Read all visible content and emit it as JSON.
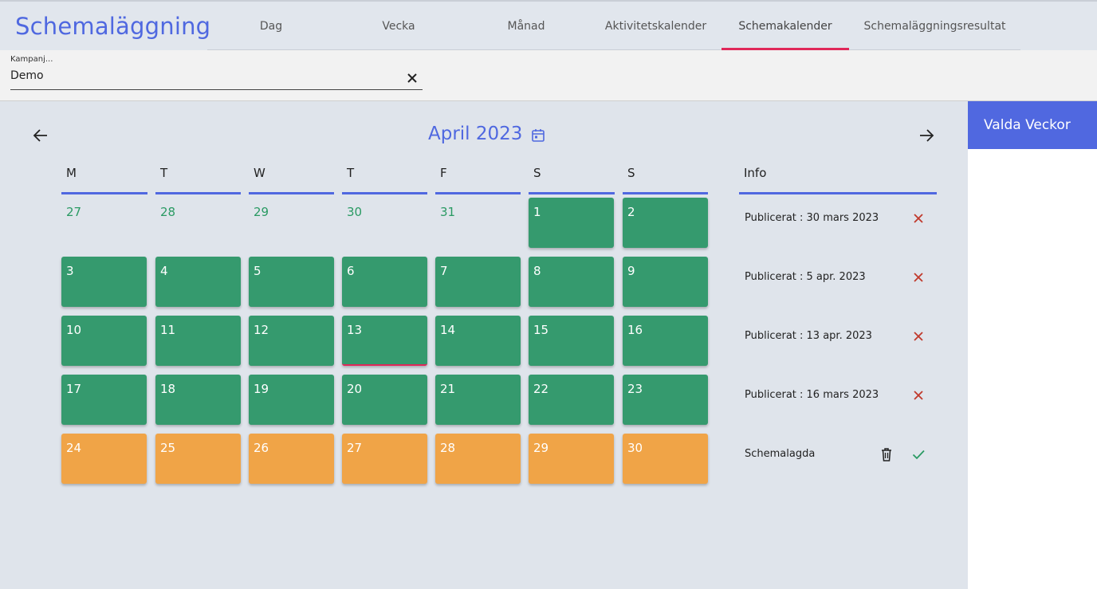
{
  "app": {
    "title": "Schemaläggning"
  },
  "tabs": [
    {
      "label": "Dag"
    },
    {
      "label": "Vecka"
    },
    {
      "label": "Månad"
    },
    {
      "label": "Aktivitetskalender"
    },
    {
      "label": "Schemakalender",
      "active": true
    },
    {
      "label": "Schemaläggningsresultat"
    }
  ],
  "campaign": {
    "label": "Kampanj...",
    "value": "Demo"
  },
  "calendar": {
    "month_title": "April 2023",
    "weekdays": [
      "M",
      "T",
      "W",
      "T",
      "F",
      "S",
      "S"
    ],
    "weeks": [
      [
        {
          "day": "27",
          "status": "outside"
        },
        {
          "day": "28",
          "status": "outside"
        },
        {
          "day": "29",
          "status": "outside"
        },
        {
          "day": "30",
          "status": "outside"
        },
        {
          "day": "31",
          "status": "outside"
        },
        {
          "day": "1",
          "status": "published"
        },
        {
          "day": "2",
          "status": "published"
        }
      ],
      [
        {
          "day": "3",
          "status": "published"
        },
        {
          "day": "4",
          "status": "published"
        },
        {
          "day": "5",
          "status": "published"
        },
        {
          "day": "6",
          "status": "published"
        },
        {
          "day": "7",
          "status": "published"
        },
        {
          "day": "8",
          "status": "published"
        },
        {
          "day": "9",
          "status": "published"
        }
      ],
      [
        {
          "day": "10",
          "status": "published"
        },
        {
          "day": "11",
          "status": "published"
        },
        {
          "day": "12",
          "status": "published"
        },
        {
          "day": "13",
          "status": "published",
          "today": true
        },
        {
          "day": "14",
          "status": "published"
        },
        {
          "day": "15",
          "status": "published"
        },
        {
          "day": "16",
          "status": "published"
        }
      ],
      [
        {
          "day": "17",
          "status": "published"
        },
        {
          "day": "18",
          "status": "published"
        },
        {
          "day": "19",
          "status": "published"
        },
        {
          "day": "20",
          "status": "published"
        },
        {
          "day": "21",
          "status": "published"
        },
        {
          "day": "22",
          "status": "published"
        },
        {
          "day": "23",
          "status": "published"
        }
      ],
      [
        {
          "day": "24",
          "status": "scheduled"
        },
        {
          "day": "25",
          "status": "scheduled"
        },
        {
          "day": "26",
          "status": "scheduled"
        },
        {
          "day": "27",
          "status": "scheduled"
        },
        {
          "day": "28",
          "status": "scheduled"
        },
        {
          "day": "29",
          "status": "scheduled"
        },
        {
          "day": "30",
          "status": "scheduled"
        }
      ]
    ]
  },
  "info": {
    "header": "Info",
    "rows": [
      {
        "text": "Publicerat : 30 mars 2023",
        "actions": [
          "close-icon"
        ]
      },
      {
        "text": "Publicerat : 5 apr. 2023",
        "actions": [
          "close-icon"
        ]
      },
      {
        "text": "Publicerat : 13 apr. 2023",
        "actions": [
          "close-icon"
        ]
      },
      {
        "text": "Publicerat : 16 mars 2023",
        "actions": [
          "close-icon"
        ]
      },
      {
        "text": "Schemalagda",
        "actions": [
          "trash-icon",
          "check-icon"
        ]
      }
    ]
  },
  "panel": {
    "title": "Valda Veckor"
  },
  "colors": {
    "accent": "#4f68e0",
    "published": "#359a6e",
    "scheduled": "#f0a447",
    "active_tab": "#e0285a",
    "delete": "#c0392b",
    "confirm": "#2a9a63"
  }
}
